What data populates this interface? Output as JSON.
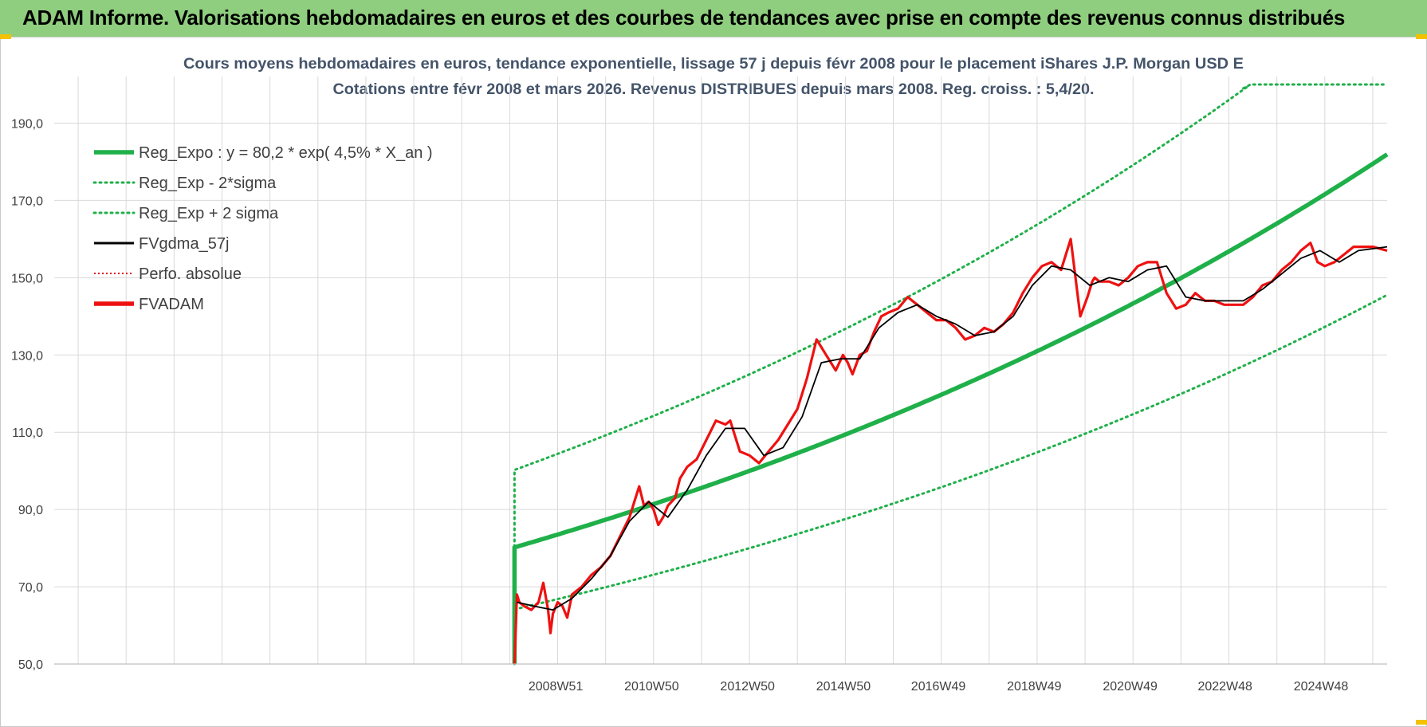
{
  "banner": {
    "title": "ADAM Informe. Valorisations hebdomadaires en euros et des courbes de tendances avec prise en compte des revenus connus distribués"
  },
  "colors": {
    "banner_bg": "#8fce7e",
    "reg_expo": "#1fb04a",
    "reg_band": "#1fb04a",
    "fvgdma": "#000000",
    "perfo": "#e00000",
    "fvadam": "#ee1111",
    "grid": "#d9d9d9",
    "accent_corner": "#f2c200"
  },
  "chart_data": {
    "type": "line",
    "title_line1": "Cours moyens hebdomadaires en euros, tendance exponentielle, lissage 57 j depuis févr 2008 pour le placement iShares J.P. Morgan USD E",
    "title_line2": "Cotations entre févr 2008 et mars 2026. Revenus DISTRIBUES depuis mars 2008. Reg. croiss. : 5,4/20.",
    "ylim": [
      50,
      200
    ],
    "xlim": [
      1998.5,
      2026.3
    ],
    "yticks": [
      50,
      70,
      90,
      110,
      130,
      150,
      170,
      190
    ],
    "ytick_labels": [
      "50,0",
      "70,0",
      "90,0",
      "110,0",
      "130,0",
      "150,0",
      "170,0",
      "190,0"
    ],
    "xticks": [
      {
        "x": 2008.96,
        "label": "2008W51"
      },
      {
        "x": 2010.96,
        "label": "2010W50"
      },
      {
        "x": 2012.96,
        "label": "2012W50"
      },
      {
        "x": 2014.96,
        "label": "2014W50"
      },
      {
        "x": 2016.94,
        "label": "2016W49"
      },
      {
        "x": 2018.94,
        "label": "2018W49"
      },
      {
        "x": 2020.94,
        "label": "2020W49"
      },
      {
        "x": 2022.92,
        "label": "2022W48"
      },
      {
        "x": 2024.92,
        "label": "2024W48"
      }
    ],
    "legend": [
      {
        "label": "Reg_Expo : y = 80,2 * exp( 4,5% *  X_an )",
        "style": "solid-thick",
        "color": "#1fb04a"
      },
      {
        "label": "Reg_Exp - 2*sigma",
        "style": "dotted",
        "color": "#1fb04a"
      },
      {
        "label": "Reg_Exp + 2 sigma",
        "style": "dotted",
        "color": "#1fb04a"
      },
      {
        "label": "FVgdma_57j",
        "style": "solid",
        "color": "#000000"
      },
      {
        "label": "Perfo. absolue",
        "style": "dotted-thin",
        "color": "#e00000"
      },
      {
        "label": "FVADAM",
        "style": "solid-thick",
        "color": "#ee1111"
      }
    ],
    "reg_expo": {
      "start_x": 2008.1,
      "end_x": 2026.3,
      "a": 80.2,
      "rate": 0.045
    },
    "band_upper_factor": 1.25,
    "band_lower_factor": 0.8,
    "series": [
      {
        "name": "FVADAM",
        "x": [
          2008.1,
          2008.15,
          2008.2,
          2008.3,
          2008.45,
          2008.6,
          2008.7,
          2008.8,
          2008.85,
          2008.9,
          2009.0,
          2009.1,
          2009.2,
          2009.3,
          2009.5,
          2009.7,
          2009.9,
          2010.1,
          2010.3,
          2010.5,
          2010.6,
          2010.7,
          2010.8,
          2010.9,
          2011.0,
          2011.1,
          2011.2,
          2011.3,
          2011.45,
          2011.55,
          2011.7,
          2011.9,
          2012.1,
          2012.3,
          2012.5,
          2012.6,
          2012.8,
          2013.0,
          2013.2,
          2013.4,
          2013.6,
          2013.8,
          2014.0,
          2014.2,
          2014.4,
          2014.6,
          2014.8,
          2014.95,
          2015.05,
          2015.15,
          2015.3,
          2015.45,
          2015.6,
          2015.75,
          2015.9,
          2016.1,
          2016.3,
          2016.5,
          2016.7,
          2016.9,
          2017.1,
          2017.3,
          2017.5,
          2017.7,
          2017.9,
          2018.1,
          2018.3,
          2018.5,
          2018.7,
          2018.9,
          2019.1,
          2019.3,
          2019.5,
          2019.7,
          2019.9,
          2020.05,
          2020.15,
          2020.2,
          2020.3,
          2020.5,
          2020.7,
          2020.9,
          2021.1,
          2021.3,
          2021.5,
          2021.7,
          2021.9,
          2022.1,
          2022.3,
          2022.5,
          2022.7,
          2022.9,
          2023.1,
          2023.3,
          2023.5,
          2023.7,
          2023.9,
          2024.1,
          2024.3,
          2024.5,
          2024.7,
          2024.85,
          2025.0,
          2025.2,
          2025.4,
          2025.6,
          2025.8,
          2026.0,
          2026.3
        ],
        "values": [
          50,
          68,
          66,
          65,
          64,
          66,
          71,
          64,
          58,
          63,
          66,
          65,
          62,
          68,
          70,
          73,
          75,
          78,
          83,
          88,
          92,
          96,
          91,
          92,
          90,
          86,
          88,
          91,
          93,
          98,
          101,
          103,
          108,
          113,
          112,
          113,
          105,
          104,
          102,
          105,
          108,
          112,
          116,
          124,
          134,
          130,
          126,
          130,
          128,
          125,
          130,
          131,
          136,
          140,
          141,
          142,
          145,
          143,
          141,
          139,
          139,
          137,
          134,
          135,
          137,
          136,
          138,
          141,
          146,
          150,
          153,
          154,
          152,
          160,
          140,
          145,
          149,
          150,
          149,
          149,
          148,
          150,
          153,
          154,
          154,
          146,
          142,
          143,
          146,
          144,
          144,
          143,
          143,
          143,
          145,
          148,
          149,
          152,
          154,
          157,
          159,
          154,
          153,
          154,
          156,
          158,
          158,
          158,
          157
        ]
      },
      {
        "name": "FVgdma_57j",
        "x": [
          2008.15,
          2008.5,
          2008.9,
          2009.3,
          2009.7,
          2010.1,
          2010.5,
          2010.9,
          2011.3,
          2011.7,
          2012.1,
          2012.5,
          2012.9,
          2013.3,
          2013.7,
          2014.1,
          2014.5,
          2014.9,
          2015.3,
          2015.7,
          2016.1,
          2016.5,
          2016.9,
          2017.3,
          2017.7,
          2018.1,
          2018.5,
          2018.9,
          2019.3,
          2019.7,
          2020.1,
          2020.5,
          2020.9,
          2021.3,
          2021.7,
          2022.1,
          2022.5,
          2022.9,
          2023.3,
          2023.7,
          2024.1,
          2024.5,
          2024.9,
          2025.3,
          2025.7,
          2026.3
        ],
        "values": [
          66,
          65,
          64,
          67,
          72,
          78,
          87,
          92,
          88,
          95,
          104,
          111,
          111,
          104,
          106,
          114,
          128,
          129,
          129,
          137,
          141,
          143,
          140,
          138,
          135,
          136,
          140,
          148,
          153,
          152,
          148,
          150,
          149,
          152,
          153,
          145,
          144,
          144,
          144,
          147,
          151,
          155,
          157,
          154,
          157,
          158
        ]
      }
    ]
  }
}
